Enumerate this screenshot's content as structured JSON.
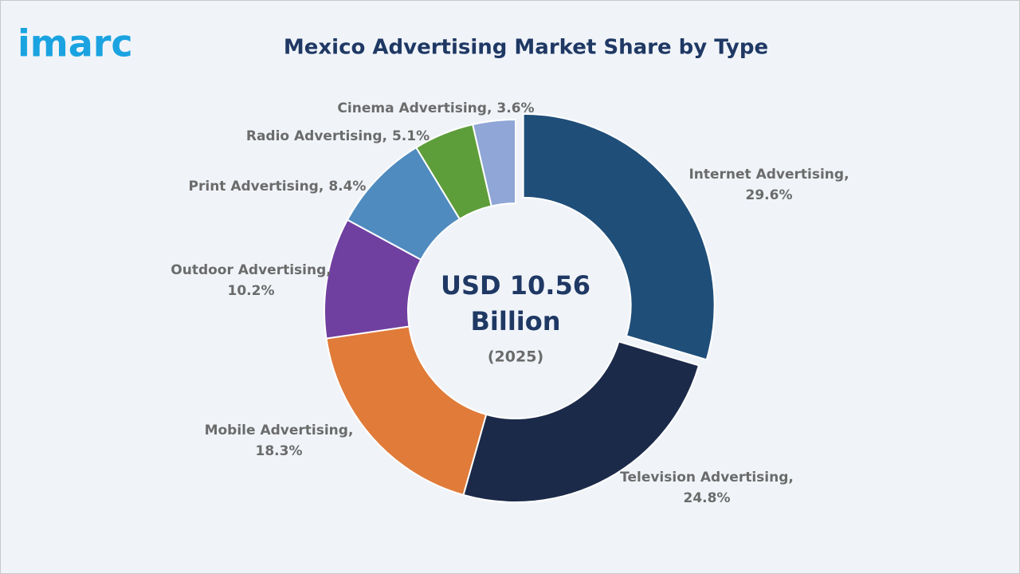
{
  "logo": "imarc",
  "chart_data": {
    "type": "donut",
    "title": "Mexico Advertising Market Share by Type",
    "categories": [
      "Internet Advertising,",
      "Television Advertising,",
      "Mobile Advertising,",
      "Outdoor Advertising,",
      "Print Advertising,",
      "Radio Advertising,",
      "Cinema Advertising,"
    ],
    "values": [
      29.6,
      24.8,
      18.3,
      10.2,
      8.4,
      5.1,
      3.6
    ],
    "value_labels": [
      "29.6%",
      "24.8%",
      "18.3%",
      "10.2%",
      "8.4%",
      "5.1%",
      "3.6%"
    ],
    "colors": [
      "#1f4e79",
      "#1c2a4a",
      "#e07b39",
      "#7040a0",
      "#4f8bbf",
      "#5e9e3a",
      "#8fa6d6"
    ],
    "exploded": 0,
    "center_label": [
      "USD 10.56",
      "Billion"
    ],
    "center_sublabel": "(2025)"
  }
}
